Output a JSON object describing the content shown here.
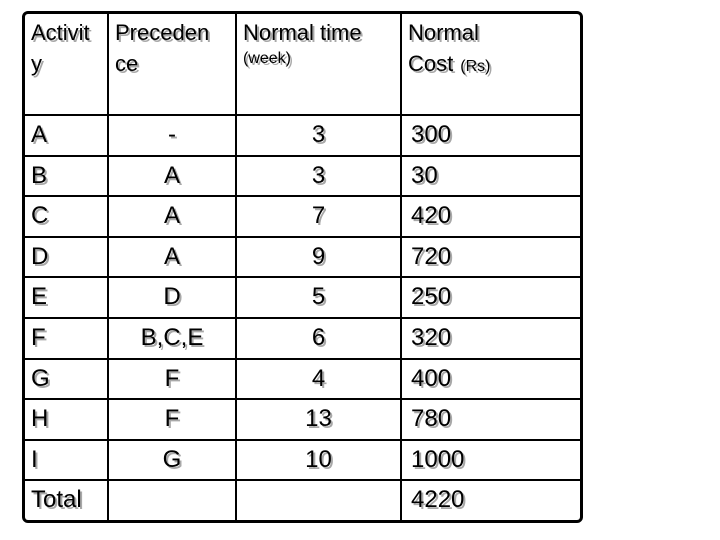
{
  "table": {
    "columns": [
      {
        "title": "Activit\ny"
      },
      {
        "title": "Preceden\nce"
      },
      {
        "title": "Normal time",
        "subtitle": "(week)"
      },
      {
        "title": "Normal",
        "title2": "Cost",
        "subtitle2": "(Rs)"
      }
    ],
    "rows": [
      {
        "activity": "A",
        "precedence": "-",
        "time": "3",
        "cost": "300"
      },
      {
        "activity": "B",
        "precedence": "A",
        "time": "3",
        "cost": "30"
      },
      {
        "activity": "C",
        "precedence": "A",
        "time": "7",
        "cost": "420"
      },
      {
        "activity": "D",
        "precedence": "A",
        "time": "9",
        "cost": "720"
      },
      {
        "activity": "E",
        "precedence": "D",
        "time": "5",
        "cost": "250"
      },
      {
        "activity": "F",
        "precedence": "B,C,E",
        "time": "6",
        "cost": "320"
      },
      {
        "activity": "G",
        "precedence": "F",
        "time": "4",
        "cost": "400"
      },
      {
        "activity": "H",
        "precedence": "F",
        "time": "13",
        "cost": "780"
      },
      {
        "activity": "I",
        "precedence": "G",
        "time": "10",
        "cost": "1000"
      },
      {
        "activity": "Total",
        "precedence": "",
        "time": "",
        "cost": "4220"
      }
    ]
  },
  "colors": {
    "text": "#000000",
    "text_shadow": "#a8a8a8",
    "border": "#000000",
    "background": "#ffffff"
  }
}
